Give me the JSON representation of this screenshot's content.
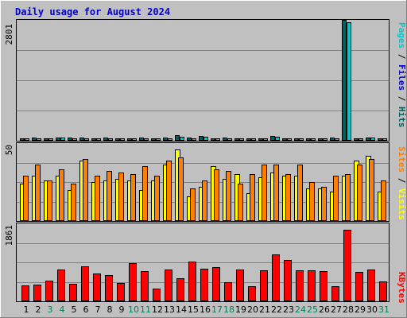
{
  "chart_data": {
    "type": "bar",
    "title": "Daily usage for August 2024",
    "categories": [
      "1",
      "2",
      "3",
      "4",
      "5",
      "6",
      "7",
      "8",
      "9",
      "10",
      "11",
      "12",
      "13",
      "14",
      "15",
      "16",
      "17",
      "18",
      "19",
      "20",
      "21",
      "22",
      "23",
      "24",
      "25",
      "26",
      "27",
      "28",
      "29",
      "30",
      "31"
    ],
    "weekend_days": [
      "3",
      "4",
      "10",
      "11",
      "17",
      "18",
      "24",
      "25",
      "31"
    ],
    "panels": [
      {
        "id": "top",
        "ymax_label": "2801",
        "ylim": [
          0,
          2801
        ],
        "right_label_parts": [
          {
            "text": "Pages",
            "color": "#00c8c8"
          },
          {
            "text": " / ",
            "color": "#000000"
          },
          {
            "text": "Files",
            "color": "#0000c8"
          },
          {
            "text": " / ",
            "color": "#000000"
          },
          {
            "text": "Hits",
            "color": "#006060"
          }
        ],
        "series": [
          {
            "name": "Hits",
            "color": "#006060",
            "values": [
              60,
              66,
              55,
              75,
              72,
              72,
              58,
              66,
              62,
              55,
              65,
              58,
              67,
              120,
              66,
              106,
              59,
              69,
              56,
              62,
              56,
              115,
              64,
              57,
              58,
              56,
              66,
              2801,
              59,
              77,
              56
            ]
          },
          {
            "name": "Files",
            "color": "#0000c8",
            "values": [
              0,
              0,
              0,
              0,
              0,
              0,
              0,
              0,
              0,
              0,
              0,
              0,
              0,
              0,
              0,
              0,
              0,
              0,
              0,
              0,
              0,
              0,
              0,
              0,
              0,
              0,
              0,
              0,
              0,
              0,
              0
            ]
          },
          {
            "name": "Pages",
            "color": "#00c8c8",
            "values": [
              50,
              55,
              48,
              65,
              62,
              62,
              50,
              58,
              55,
              48,
              58,
              50,
              59,
              100,
              58,
              92,
              52,
              60,
              50,
              54,
              49,
              98,
              56,
              50,
              51,
              49,
              58,
              2745,
              52,
              68,
              49
            ]
          }
        ]
      },
      {
        "id": "mid",
        "ymax_label": "50",
        "ylim": [
          0,
          50
        ],
        "right_label_parts": [
          {
            "text": "Sites",
            "color": "#ff8000"
          },
          {
            "text": " / ",
            "color": "#000000"
          },
          {
            "text": "Visits",
            "color": "#ffff00"
          }
        ],
        "series": [
          {
            "name": "Visits",
            "color": "#ffff00",
            "values": [
              24,
              29,
              26,
              29,
              20,
              39,
              25,
              26,
              27,
              26,
              20,
              26,
              36,
              46,
              16,
              22,
              35,
              27,
              30,
              18,
              28,
              31,
              29,
              29,
              21,
              21,
              19,
              29,
              39,
              42,
              19
            ]
          },
          {
            "name": "Sites",
            "color": "#ff8000",
            "values": [
              29,
              36,
              26,
              33,
              24,
              40,
              29,
              32,
              31,
              30,
              35,
              29,
              39,
              41,
              21,
              26,
              33,
              32,
              24,
              30,
              36,
              36,
              30,
              36,
              25,
              22,
              29,
              30,
              36,
              40,
              26
            ]
          }
        ]
      },
      {
        "id": "bot",
        "ymax_label": "1861",
        "ylim": [
          0,
          1861
        ],
        "right_label_parts": [
          {
            "text": "KBytes",
            "color": "#ff0000"
          }
        ],
        "series": [
          {
            "name": "KBytes",
            "color": "#ff0000",
            "values": [
              382,
              400,
              494,
              766,
              424,
              836,
              668,
              621,
              436,
              911,
              717,
              304,
              760,
              549,
              954,
              778,
              818,
              455,
              760,
              364,
              733,
              1123,
              981,
              742,
              742,
              721,
              364,
              1718,
              710,
              760,
              472
            ]
          }
        ]
      }
    ],
    "colors": {
      "background": "#c0c0c0",
      "plot_background": "#c0c0c0",
      "gridline": "#808080",
      "title": "#0000c8",
      "weekday_label": "#000000",
      "weekend_label": "#00805c"
    }
  }
}
